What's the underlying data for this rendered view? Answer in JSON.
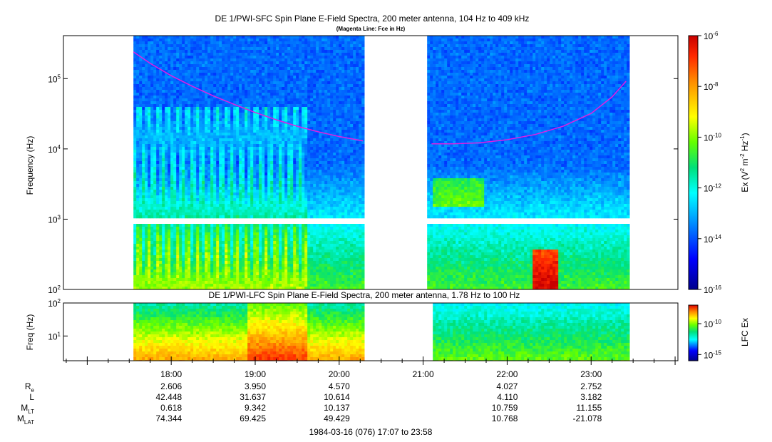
{
  "chart_data": [
    {
      "type": "heatmap",
      "title": "DE 1/PWI-SFC  Spin Plane E-Field Spectra, 200 meter antenna, 104 Hz to 409 kHz",
      "subtitle": "(Magenta Line: Fce in Hz)",
      "ylabel": "Frequency (Hz)",
      "yscale": "log",
      "ylim": [
        100,
        409000
      ],
      "yticks": [
        {
          "value": 100,
          "base": "10",
          "exp": "2"
        },
        {
          "value": 1000,
          "base": "10",
          "exp": "3"
        },
        {
          "value": 10000,
          "base": "10",
          "exp": "4"
        },
        {
          "value": 100000,
          "base": "10",
          "exp": "5"
        }
      ],
      "data_gaps": [
        [
          "20:17",
          "21:02"
        ]
      ],
      "colorbar": {
        "label_parts": [
          "Ex (V",
          "2",
          " m",
          "-2",
          " Hz",
          "-1",
          ")"
        ],
        "scale": "log",
        "range": [
          1e-16,
          1e-06
        ],
        "ticks": [
          {
            "value": 1e-06,
            "base": "10",
            "exp": "-6"
          },
          {
            "value": 1e-08,
            "base": "10",
            "exp": "-8"
          },
          {
            "value": 1e-10,
            "base": "10",
            "exp": "-10"
          },
          {
            "value": 1e-12,
            "base": "10",
            "exp": "-12"
          },
          {
            "value": 1e-14,
            "base": "10",
            "exp": "-14"
          },
          {
            "value": 1e-16,
            "base": "10",
            "exp": "-16"
          }
        ]
      },
      "series": [
        {
          "name": "Fce",
          "color": "#e020e0",
          "segments": [
            {
              "t": [
                "17:33",
                "17:45",
                "18:00",
                "18:15",
                "18:30",
                "18:45",
                "19:00",
                "19:15",
                "19:30",
                "19:45",
                "20:00",
                "20:17"
              ],
              "v": [
                240000,
                165000,
                110000,
                78000,
                57000,
                43000,
                33000,
                26000,
                21000,
                17500,
                15000,
                13000
              ]
            },
            {
              "t": [
                "21:06",
                "21:20",
                "21:40",
                "22:00",
                "22:20",
                "22:40",
                "23:00",
                "23:15",
                "23:25"
              ],
              "v": [
                11800,
                11800,
                12200,
                13500,
                16000,
                21000,
                32000,
                55000,
                92000
              ]
            }
          ]
        }
      ]
    },
    {
      "type": "heatmap",
      "title": "DE 1/PWI-LFC  Spin Plane E-Field Spectra, 200 meter antenna, 1.78 Hz to 100 Hz",
      "ylabel": "Freq (Hz)",
      "yscale": "log",
      "ylim": [
        1.78,
        100
      ],
      "yticks": [
        {
          "value": 10,
          "base": "10",
          "exp": "1"
        },
        {
          "value": 100,
          "base": "10",
          "exp": "2"
        }
      ],
      "data_gaps": [
        [
          "20:17",
          "21:05"
        ]
      ],
      "colorbar": {
        "label": "LFC Ex",
        "scale": "log",
        "range": [
          1e-16,
          1e-07
        ],
        "ticks": [
          {
            "value": 1e-10,
            "base": "10",
            "exp": "-10"
          },
          {
            "value": 1e-15,
            "base": "10",
            "exp": "-15"
          }
        ]
      }
    }
  ],
  "xaxis": {
    "range": [
      "16:43",
      "24:02"
    ],
    "tick_labels": [
      "18:00",
      "19:00",
      "20:00",
      "21:00",
      "22:00",
      "23:00"
    ]
  },
  "ephemeris": {
    "rows": [
      {
        "name": "R",
        "sub": "e",
        "values": [
          "2.606",
          "3.950",
          "4.570",
          "",
          "4.027",
          "2.752"
        ]
      },
      {
        "name": "L",
        "sub": "",
        "values": [
          "42.448",
          "31.637",
          "10.614",
          "",
          "4.110",
          "3.182"
        ]
      },
      {
        "name": "M",
        "sub": "LT",
        "values": [
          "0.618",
          "9.342",
          "10.137",
          "",
          "10.759",
          "11.155"
        ]
      },
      {
        "name": "M",
        "sub": "LAT",
        "values": [
          "74.344",
          "69.425",
          "49.429",
          "",
          "10.768",
          "-21.078"
        ]
      }
    ]
  },
  "footer": "1984-03-16 (076) 17:07 to 23:58"
}
